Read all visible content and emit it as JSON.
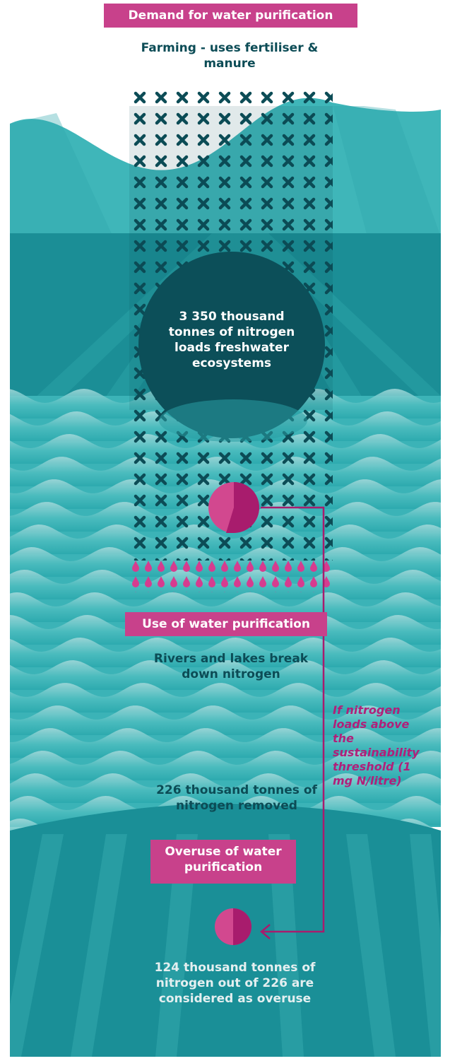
{
  "header": {
    "demand_title": "Demand for water purification",
    "source_label": "Farming - uses fertiliser & manure"
  },
  "nitrogen_load": {
    "text": "3 350 thousand tonnes of nitrogen loads freshwater ecosystems",
    "value": 3350,
    "unit": "thousand tonnes"
  },
  "use_section": {
    "title": "Use of water purification",
    "subtitle": "Rivers and lakes break down nitrogen",
    "removed_text": "226 thousand tonnes of nitrogen removed",
    "removed_value": 226
  },
  "threshold_note": "If nitrogen loads above the sustainability threshold (1 mg N/litre)",
  "overuse_section": {
    "title": "Overuse of water purification",
    "text": "124 thousand tonnes of nitrogen out of 226 are considered as overuse",
    "overuse_value": 124,
    "total_value": 226
  },
  "colors": {
    "magenta": "#c8418b",
    "magenta_dark": "#a81c6d",
    "teal_light": "#3fb6b9",
    "teal_mid": "#1e8f96",
    "teal_dark": "#0f7782",
    "navy": "#0c4c56",
    "wave_light": "#9fd6d8"
  },
  "icons": {
    "cross_pattern": "cross-icon",
    "droplet_pattern": "droplet-icon",
    "arrow": "arrow-left-icon"
  }
}
